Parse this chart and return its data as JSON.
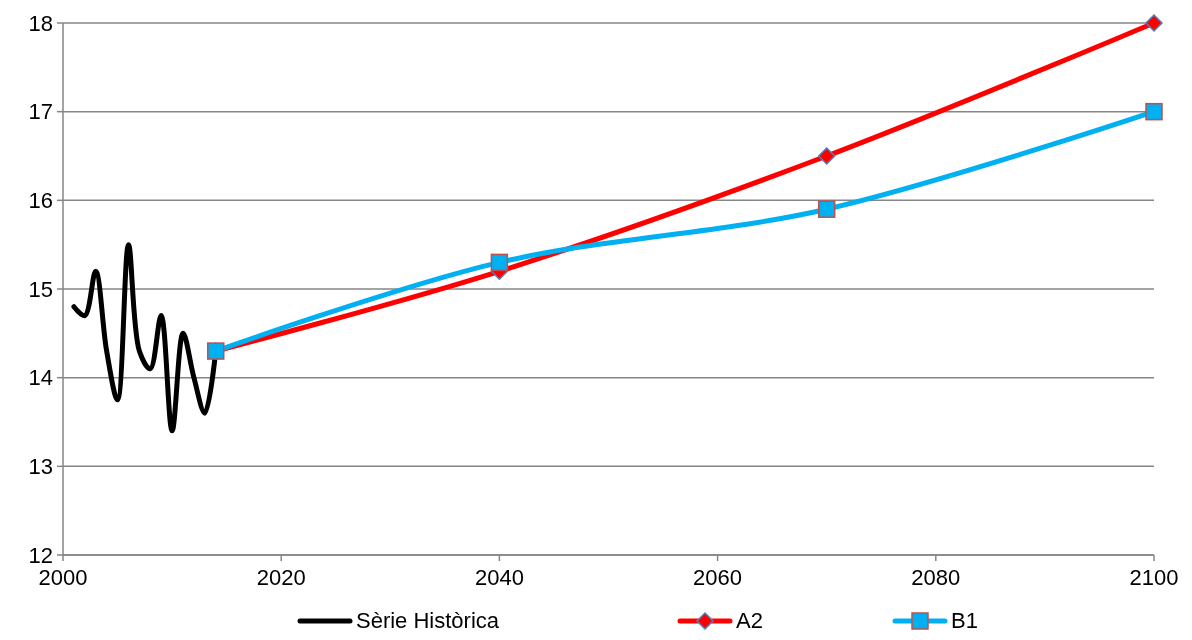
{
  "chart_data": {
    "type": "line",
    "xlim": [
      2000,
      2100
    ],
    "xticks": [
      2000,
      2020,
      2040,
      2060,
      2080,
      2100
    ],
    "ylim": [
      12,
      18
    ],
    "yticks": [
      12,
      13,
      14,
      15,
      16,
      17,
      18
    ],
    "grid": "y",
    "legend": "bottom",
    "line_style": "solid",
    "series": [
      {
        "name": "Sèrie Històrica",
        "color": "#000000",
        "marker": "none",
        "x": [
          2001,
          2002,
          2003,
          2004,
          2005,
          2006,
          2007,
          2008,
          2009,
          2010,
          2011,
          2012,
          2013,
          2014
        ],
        "values": [
          14.8,
          14.7,
          15.2,
          14.3,
          13.75,
          15.5,
          14.3,
          14.1,
          14.7,
          13.4,
          14.5,
          14.0,
          13.6,
          14.3
        ]
      },
      {
        "name": "A2",
        "color": "#ff0000",
        "marker": "diamond",
        "x": [
          2014,
          2040,
          2070,
          2100
        ],
        "values": [
          14.3,
          15.2,
          16.5,
          18
        ]
      },
      {
        "name": "B1",
        "color": "#00b0f0",
        "marker": "square",
        "x": [
          2014,
          2040,
          2070,
          2100
        ],
        "values": [
          14.3,
          15.3,
          15.9,
          17
        ]
      }
    ]
  }
}
